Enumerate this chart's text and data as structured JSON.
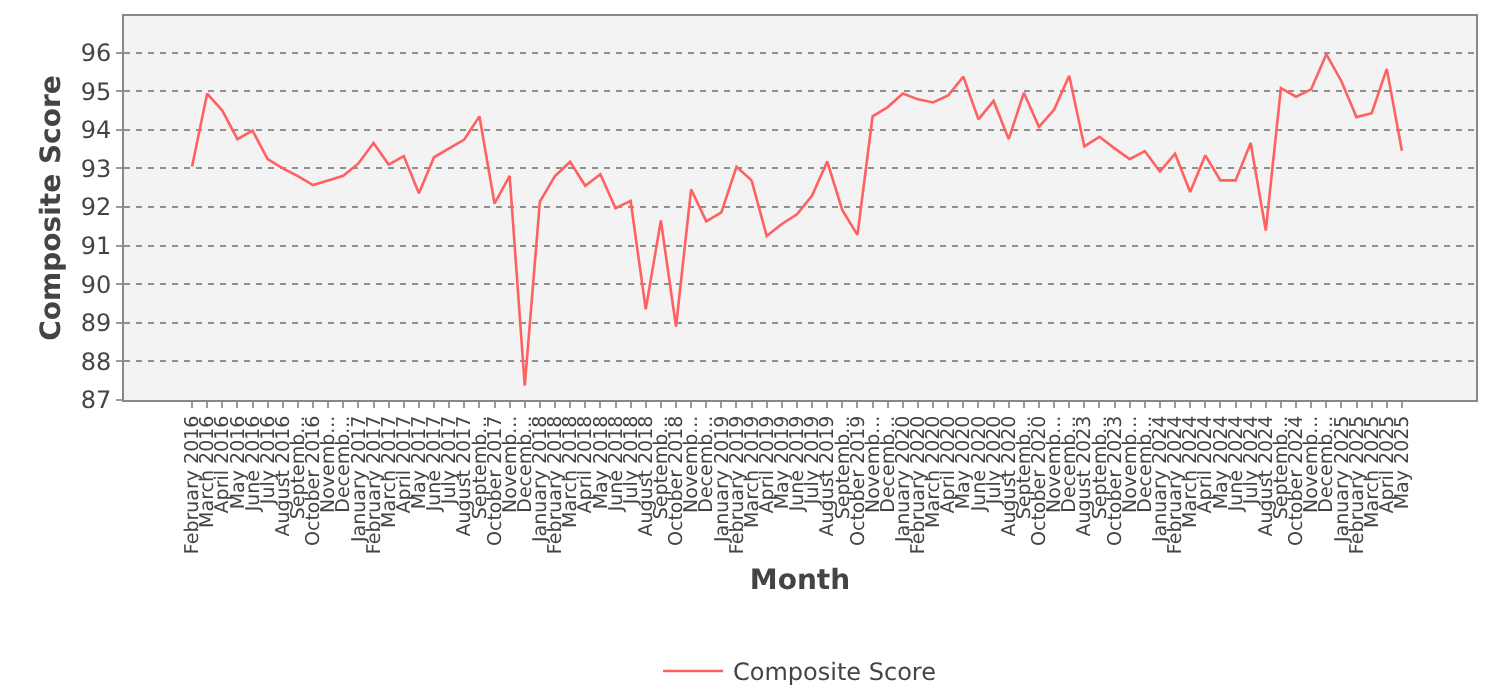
{
  "chart_data": {
    "type": "line",
    "xlabel": "Month",
    "ylabel": "Composite Score",
    "categories": [
      "February 2016",
      "March 2016",
      "April 2016",
      "May 2016",
      "June 2016",
      "July 2016",
      "August 2016",
      "Septemb...",
      "October 2016",
      "Novemb...",
      "Decemb...",
      "January 2017",
      "February 2017",
      "March 2017",
      "April 2017",
      "May 2017",
      "June 2017",
      "July 2017",
      "August 2017",
      "Septemb...",
      "October 2017",
      "Novemb...",
      "Decemb...",
      "January 2018",
      "February 2018",
      "March 2018",
      "April 2018",
      "May 2018",
      "June 2018",
      "July 2018",
      "August 2018",
      "Septemb...",
      "October 2018",
      "Novemb...",
      "Decemb...",
      "January 2019",
      "February 2019",
      "March 2019",
      "April 2019",
      "May 2019",
      "June 2019",
      "July 2019",
      "August 2019",
      "Septemb...",
      "October 2019",
      "Novemb...",
      "Decemb...",
      "January 2020",
      "February 2020",
      "March 2020",
      "April 2020",
      "May 2020",
      "June 2020",
      "July 2020",
      "August 2020",
      "Septemb...",
      "October 2020",
      "Novemb...",
      "Decemb...",
      "August 2023",
      "Septemb...",
      "October 2023",
      "Novemb...",
      "Decemb...",
      "January 2024",
      "February 2024",
      "March 2024",
      "April 2024",
      "May 2024",
      "June 2024",
      "July 2024",
      "August 2024",
      "Septemb...",
      "October 2024",
      "Novemb...",
      "Decemb...",
      "January 2025",
      "February 2025",
      "March 2025",
      "April 2025",
      "May 2025"
    ],
    "series": [
      {
        "name": "Composite Score",
        "color": "#ff6060",
        "values": [
          93.05,
          94.94,
          94.5,
          93.76,
          93.98,
          93.24,
          93.0,
          92.8,
          92.57,
          92.69,
          92.81,
          93.13,
          93.66,
          93.1,
          93.32,
          92.36,
          93.29,
          93.52,
          93.75,
          94.35,
          92.09,
          92.81,
          87.37,
          92.14,
          92.8,
          93.17,
          92.55,
          92.85,
          91.97,
          92.16,
          89.35,
          91.65,
          88.9,
          92.46,
          91.63,
          91.86,
          93.04,
          92.69,
          91.25,
          91.56,
          91.81,
          92.3,
          93.18,
          91.92,
          91.28,
          94.35,
          94.59,
          94.94,
          94.79,
          94.71,
          94.89,
          95.38,
          94.27,
          94.75,
          93.76,
          94.96,
          94.08,
          94.52,
          95.4,
          93.57,
          93.82,
          93.52,
          93.24,
          93.45,
          92.92,
          93.38,
          92.39,
          93.34,
          92.69,
          92.69,
          93.66,
          91.39,
          95.08,
          94.86,
          95.05,
          95.96,
          95.26,
          94.33,
          94.43,
          95.58,
          93.46
        ]
      }
    ],
    "ylim": [
      87,
      96.95
    ],
    "yticks": [
      87,
      88,
      89,
      90,
      91,
      92,
      93,
      94,
      95,
      96
    ],
    "grid": "y",
    "legend": "bottom",
    "marker": "none",
    "line_style": "solid"
  }
}
